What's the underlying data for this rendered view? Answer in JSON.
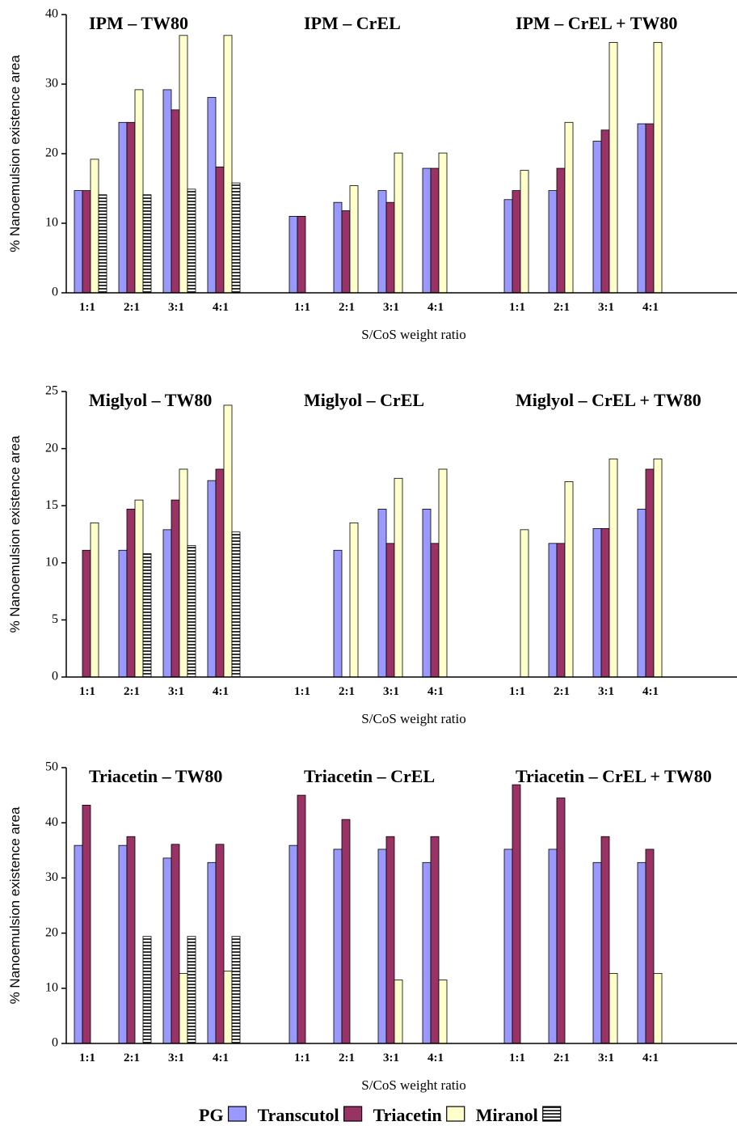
{
  "legend": [
    {
      "name": "PG",
      "color": "#9999ff"
    },
    {
      "name": "Transcutol",
      "color": "#993366"
    },
    {
      "name": "Triacetin",
      "color": "#ffffcc"
    },
    {
      "name": "Miranol",
      "color": "hatch"
    }
  ],
  "chart_data": [
    {
      "type": "bar",
      "ylabel": "% Nanoemulsion existence area",
      "xlabel": "S/CoS weight ratio",
      "groups": [
        "IPM – TW80",
        "IPM – CrEL",
        "IPM – CrEL + TW80"
      ],
      "categories": [
        "1:1",
        "2:1",
        "3:1",
        "4:1",
        "1:1",
        "2:1",
        "3:1",
        "4:1",
        "1:1",
        "2:1",
        "3:1",
        "4:1"
      ],
      "ylim": [
        0,
        40
      ],
      "yticks": [
        0,
        10,
        20,
        30,
        40
      ],
      "series": [
        {
          "values": [
            14.7,
            24.5,
            29.2,
            28.1,
            11,
            13,
            14.7,
            17.9,
            13.4,
            14.7,
            21.8,
            24.3
          ]
        },
        {
          "values": [
            14.7,
            24.5,
            26.3,
            18.1,
            11,
            11.8,
            13,
            17.9,
            14.7,
            17.9,
            23.4,
            24.3
          ]
        },
        {
          "values": [
            19.2,
            29.2,
            37,
            37,
            null,
            15.4,
            20.1,
            20.1,
            17.6,
            24.5,
            36,
            36
          ]
        },
        {
          "values": [
            14.1,
            14.1,
            14.9,
            15.8,
            null,
            null,
            null,
            null,
            null,
            null,
            null,
            null
          ]
        }
      ]
    },
    {
      "type": "bar",
      "ylabel": "% Nanoemulsion existence area",
      "xlabel": "S/CoS weight ratio",
      "groups": [
        "Miglyol – TW80",
        "Miglyol – CrEL",
        "Miglyol – CrEL + TW80"
      ],
      "categories": [
        "1:1",
        "2:1",
        "3:1",
        "4:1",
        "1:1",
        "2:1",
        "3:1",
        "4:1",
        "1:1",
        "2:1",
        "3:1",
        "4:1"
      ],
      "ylim": [
        0,
        25
      ],
      "yticks": [
        0,
        5,
        10,
        15,
        20,
        25
      ],
      "series": [
        {
          "values": [
            null,
            11.1,
            12.9,
            17.2,
            null,
            11.1,
            14.7,
            14.7,
            null,
            11.7,
            13,
            14.7
          ]
        },
        {
          "values": [
            11.1,
            14.7,
            15.5,
            18.2,
            null,
            null,
            11.7,
            11.7,
            null,
            11.7,
            13,
            18.2
          ]
        },
        {
          "values": [
            13.5,
            15.5,
            18.2,
            23.8,
            null,
            13.5,
            17.4,
            18.2,
            12.9,
            17.1,
            19.1,
            19.1
          ]
        },
        {
          "values": [
            null,
            10.8,
            11.5,
            12.7,
            null,
            null,
            null,
            null,
            null,
            null,
            null,
            null
          ]
        }
      ]
    },
    {
      "type": "bar",
      "ylabel": "% Nanoemulsion existence area",
      "xlabel": "S/CoS weight ratio",
      "groups": [
        "Triacetin – TW80",
        "Triacetin – CrEL",
        "Triacetin – CrEL + TW80"
      ],
      "categories": [
        "1:1",
        "2:1",
        "3:1",
        "4:1",
        "1:1",
        "2:1",
        "3:1",
        "4:1",
        "1:1",
        "2:1",
        "3:1",
        "4:1"
      ],
      "ylim": [
        0,
        50
      ],
      "yticks": [
        0,
        10,
        20,
        30,
        40,
        50
      ],
      "series": [
        {
          "values": [
            35.9,
            35.9,
            33.6,
            32.8,
            35.9,
            35.2,
            35.2,
            32.8,
            35.2,
            35.2,
            32.8,
            32.8
          ]
        },
        {
          "values": [
            43.2,
            37.5,
            36.1,
            36.1,
            45,
            40.6,
            37.5,
            37.5,
            46.9,
            44.5,
            37.5,
            35.2
          ]
        },
        {
          "values": [
            null,
            null,
            12.7,
            13.1,
            null,
            null,
            11.5,
            11.5,
            null,
            null,
            12.7,
            12.7
          ]
        },
        {
          "values": [
            null,
            19.4,
            19.4,
            19.4,
            null,
            null,
            null,
            null,
            null,
            null,
            null,
            null
          ]
        }
      ]
    }
  ]
}
